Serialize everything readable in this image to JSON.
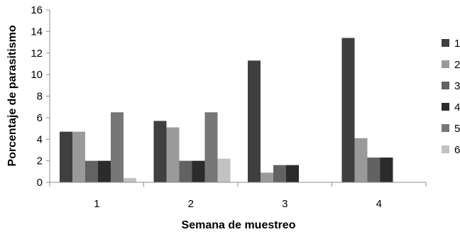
{
  "chart_data": {
    "type": "bar",
    "title": "",
    "xlabel": "Semana de muestreo",
    "ylabel": "Porcentaje de parasitismo",
    "categories": [
      "1",
      "2",
      "3",
      "4"
    ],
    "ylim": [
      0,
      16
    ],
    "yticks": [
      0,
      2,
      4,
      6,
      8,
      10,
      12,
      14,
      16
    ],
    "grid": false,
    "legend_position": "right",
    "series": [
      {
        "name": "1",
        "color": "#3f3f3f",
        "values": [
          4.7,
          5.7,
          11.3,
          13.4
        ]
      },
      {
        "name": "2",
        "color": "#9a9a9a",
        "values": [
          4.7,
          5.1,
          0.9,
          4.1
        ]
      },
      {
        "name": "3",
        "color": "#626262",
        "values": [
          2.0,
          2.0,
          1.6,
          2.3
        ]
      },
      {
        "name": "4",
        "color": "#2b2b2b",
        "values": [
          2.0,
          2.0,
          1.6,
          2.3
        ]
      },
      {
        "name": "5",
        "color": "#777777",
        "values": [
          6.5,
          6.5,
          0,
          0
        ]
      },
      {
        "name": "6",
        "color": "#c2c2c2",
        "values": [
          0.4,
          2.2,
          0,
          0
        ]
      }
    ]
  }
}
